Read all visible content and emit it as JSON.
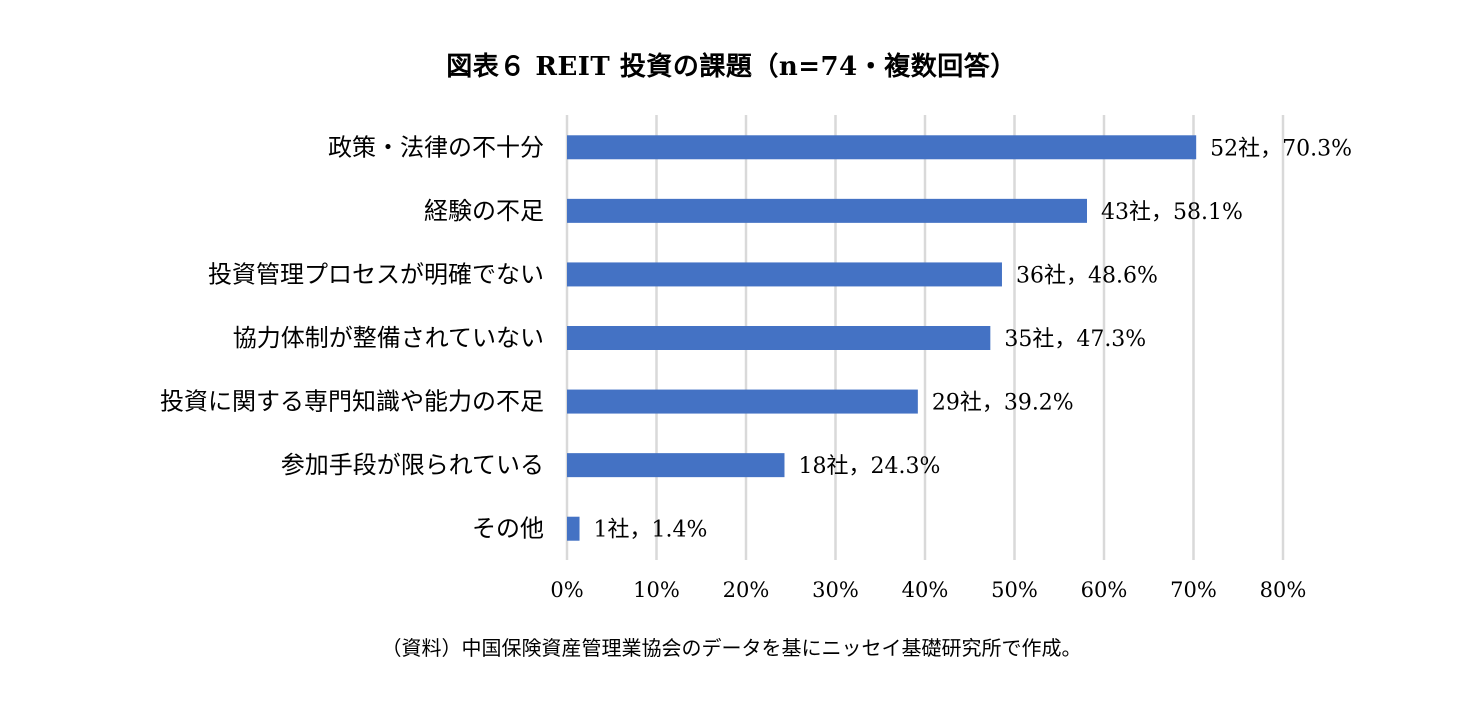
{
  "title": "図表６ REIT 投資の課題（n=74・複数回答）",
  "source": "（資料）中国保険資産管理業協会のデータを基にニッセイ基礎研究所で作成。",
  "colors": {
    "bar": "#4472C4",
    "grid": "#d9d9d9"
  },
  "chart_data": {
    "type": "bar",
    "orientation": "horizontal",
    "categories": [
      "政策・法律の不十分",
      "経験の不足",
      "投資管理プロセスが明確でない",
      "協力体制が整備されていない",
      "投資に関する専門知識や能力の不足",
      "参加手段が限られている",
      "その他"
    ],
    "values": [
      70.3,
      58.1,
      48.6,
      47.3,
      39.2,
      24.3,
      1.4
    ],
    "data_labels": [
      "52社，70.3%",
      "43社，58.1%",
      "36社，48.6%",
      "35社，47.3%",
      "29社，39.2%",
      "18社，24.3%",
      "1社，1.4%"
    ],
    "xlim": [
      0,
      80
    ],
    "x_ticks": [
      "0%",
      "10%",
      "20%",
      "30%",
      "40%",
      "50%",
      "60%",
      "70%",
      "80%"
    ],
    "grid": true
  }
}
